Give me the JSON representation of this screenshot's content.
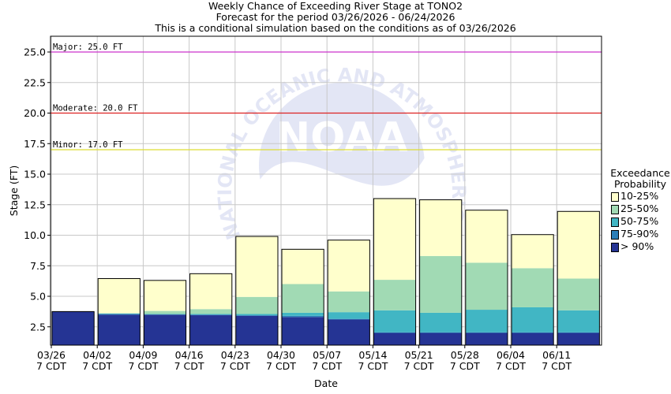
{
  "header": {
    "line1": "Weekly Chance of Exceeding River Stage at TONO2",
    "line2": "Forecast for the period 03/26/2026 - 06/24/2026",
    "line3": "This is a conditional simulation based on the conditions as of 03/26/2026"
  },
  "legend": {
    "title1": "Exceedance",
    "title2": "Probability",
    "items": [
      {
        "label": "10-25%",
        "color": "#ffffcc"
      },
      {
        "label": "25-50%",
        "color": "#a1dab4"
      },
      {
        "label": "50-75%",
        "color": "#41b6c4"
      },
      {
        "label": "75-90%",
        "color": "#2c7fb8"
      },
      {
        "label": "> 90%",
        "color": "#253494"
      }
    ]
  },
  "chart_data": {
    "type": "bar",
    "subtype": "stacked-range",
    "xlabel": "Date",
    "ylabel": "Stage (FT)",
    "ylim": [
      1.0,
      26.0
    ],
    "yticks": [
      2.5,
      5.0,
      7.5,
      10.0,
      12.5,
      15.0,
      17.5,
      20.0,
      22.5,
      25.0
    ],
    "grid": true,
    "legend_position": "right",
    "watermark": "NOAA",
    "watermark_text": "NATIONAL OCEANIC AND ATMOSPHERIC ADMINISTRATION",
    "x_ticks": [
      {
        "date": "03/26",
        "time": "7 CDT"
      },
      {
        "date": "04/02",
        "time": "7 CDT"
      },
      {
        "date": "04/09",
        "time": "7 CDT"
      },
      {
        "date": "04/16",
        "time": "7 CDT"
      },
      {
        "date": "04/23",
        "time": "7 CDT"
      },
      {
        "date": "04/30",
        "time": "7 CDT"
      },
      {
        "date": "05/07",
        "time": "7 CDT"
      },
      {
        "date": "05/14",
        "time": "7 CDT"
      },
      {
        "date": "05/21",
        "time": "7 CDT"
      },
      {
        "date": "05/28",
        "time": "7 CDT"
      },
      {
        "date": "06/04",
        "time": "7 CDT"
      },
      {
        "date": "06/11",
        "time": "7 CDT"
      }
    ],
    "thresholds": [
      {
        "label": "Major: 25.0 FT",
        "value": 25.0,
        "color": "#cc33cc"
      },
      {
        "label": "Moderate: 20.0 FT",
        "value": 20.0,
        "color": "#dd2222"
      },
      {
        "label": "Minor: 17.0 FT",
        "value": 17.0,
        "color": "#dddd33"
      }
    ],
    "series": [
      {
        "name": "> 90%",
        "color": "#253494"
      },
      {
        "name": "75-90%",
        "color": "#2c7fb8"
      },
      {
        "name": "50-75%",
        "color": "#41b6c4"
      },
      {
        "name": "25-50%",
        "color": "#a1dab4"
      },
      {
        "name": "10-25%",
        "color": "#ffffcc"
      }
    ],
    "weeks": [
      {
        "start": "03/26",
        "bounds": [
          1.0,
          3.75,
          3.75,
          3.75,
          3.75,
          3.75
        ]
      },
      {
        "start": "04/02",
        "bounds": [
          1.0,
          3.5,
          3.55,
          3.6,
          3.6,
          6.45
        ]
      },
      {
        "start": "04/09",
        "bounds": [
          1.0,
          3.5,
          3.5,
          3.55,
          3.8,
          6.3
        ]
      },
      {
        "start": "04/16",
        "bounds": [
          1.0,
          3.45,
          3.5,
          3.55,
          3.95,
          6.85
        ]
      },
      {
        "start": "04/23",
        "bounds": [
          1.0,
          3.4,
          3.45,
          3.55,
          4.95,
          9.9
        ]
      },
      {
        "start": "04/30",
        "bounds": [
          1.0,
          3.3,
          3.4,
          3.65,
          6.0,
          8.85
        ]
      },
      {
        "start": "05/07",
        "bounds": [
          1.0,
          3.1,
          3.15,
          3.7,
          5.4,
          9.6
        ]
      },
      {
        "start": "05/14",
        "bounds": [
          1.0,
          2.0,
          2.05,
          3.85,
          6.35,
          13.0
        ]
      },
      {
        "start": "05/21",
        "bounds": [
          1.0,
          2.0,
          2.05,
          3.65,
          8.3,
          12.9
        ]
      },
      {
        "start": "05/28",
        "bounds": [
          1.0,
          2.0,
          2.05,
          3.9,
          7.75,
          12.05
        ]
      },
      {
        "start": "06/04",
        "bounds": [
          1.0,
          2.0,
          2.05,
          4.1,
          7.3,
          10.05
        ]
      },
      {
        "start": "06/11",
        "bounds": [
          1.0,
          2.0,
          2.05,
          3.85,
          6.45,
          11.95
        ]
      }
    ]
  }
}
